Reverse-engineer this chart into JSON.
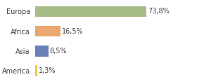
{
  "categories": [
    "America",
    "Asia",
    "Africa",
    "Europa"
  ],
  "values": [
    1.3,
    8.5,
    16.5,
    73.8
  ],
  "colors": [
    "#e8c84a",
    "#6b80b8",
    "#e8a870",
    "#a8bc88"
  ],
  "labels": [
    "1,3%",
    "8,5%",
    "16,5%",
    "73,8%"
  ],
  "xlim": [
    0,
    105
  ],
  "background_color": "#ffffff",
  "label_fontsize": 7.0,
  "tick_fontsize": 7.0,
  "bar_height": 0.55
}
